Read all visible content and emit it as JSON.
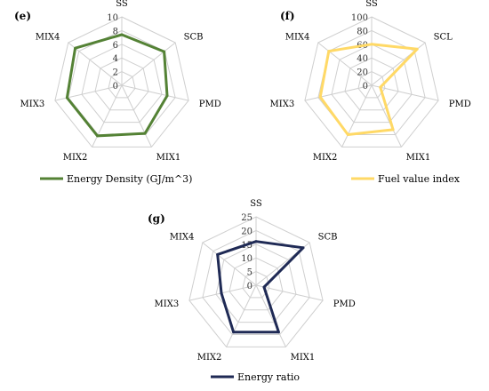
{
  "chart_data": [
    {
      "type": "radar",
      "panel": "(e)",
      "axes": [
        "SS",
        "SCB",
        "PMD",
        "MIX1",
        "MIX2",
        "MIX3",
        "MIX4"
      ],
      "ticks": [
        "0",
        "2",
        "4",
        "6",
        "8",
        "10"
      ],
      "rmax": 10,
      "series": [
        {
          "name": "Energy Density (GJ/m^3)",
          "color": "#548235",
          "values": [
            7.4,
            7.9,
            6.8,
            7.8,
            8.2,
            8.2,
            8.7
          ]
        }
      ]
    },
    {
      "type": "radar",
      "panel": "(f)",
      "axes": [
        "SS",
        "SCL",
        "PMD",
        "MIX1",
        "MIX2",
        "MIX3",
        "MIX4"
      ],
      "ticks": [
        "0",
        "20",
        "40",
        "60",
        "80",
        "100"
      ],
      "rmax": 100,
      "series": [
        {
          "name": "Fuel value index",
          "color": "#FFD966",
          "values": [
            60,
            85,
            13,
            72,
            80,
            77,
            80
          ]
        }
      ]
    },
    {
      "type": "radar",
      "panel": "(g)",
      "axes": [
        "SS",
        "SCB",
        "PMD",
        "MIX1",
        "MIX2",
        "MIX3",
        "MIX4"
      ],
      "ticks": [
        "0",
        "5",
        "10",
        "15",
        "20",
        "25"
      ],
      "rmax": 25,
      "series": [
        {
          "name": "Energy ratio",
          "color": "#1F2A55",
          "values": [
            16,
            22,
            3,
            19,
            19,
            13,
            18
          ]
        }
      ]
    }
  ]
}
